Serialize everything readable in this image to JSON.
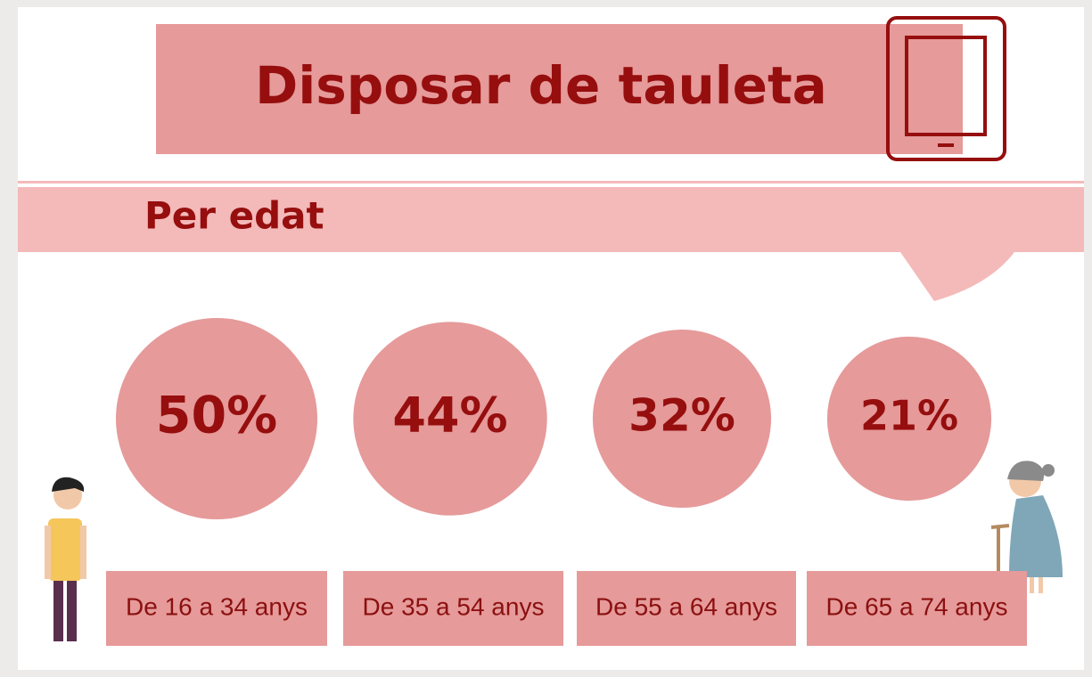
{
  "chart_data": {
    "type": "bubble",
    "title": "Disposar de tauleta",
    "subtitle": "Per edat",
    "categories": [
      "De 16 a 34 anys",
      "De 35 a 54 anys",
      "De 55 a 64 anys",
      "De 65 a 74 anys"
    ],
    "values": [
      50,
      44,
      32,
      21
    ],
    "value_labels": [
      "50%",
      "44%",
      "32%",
      "21%"
    ],
    "color": "#e69a9a"
  }
}
